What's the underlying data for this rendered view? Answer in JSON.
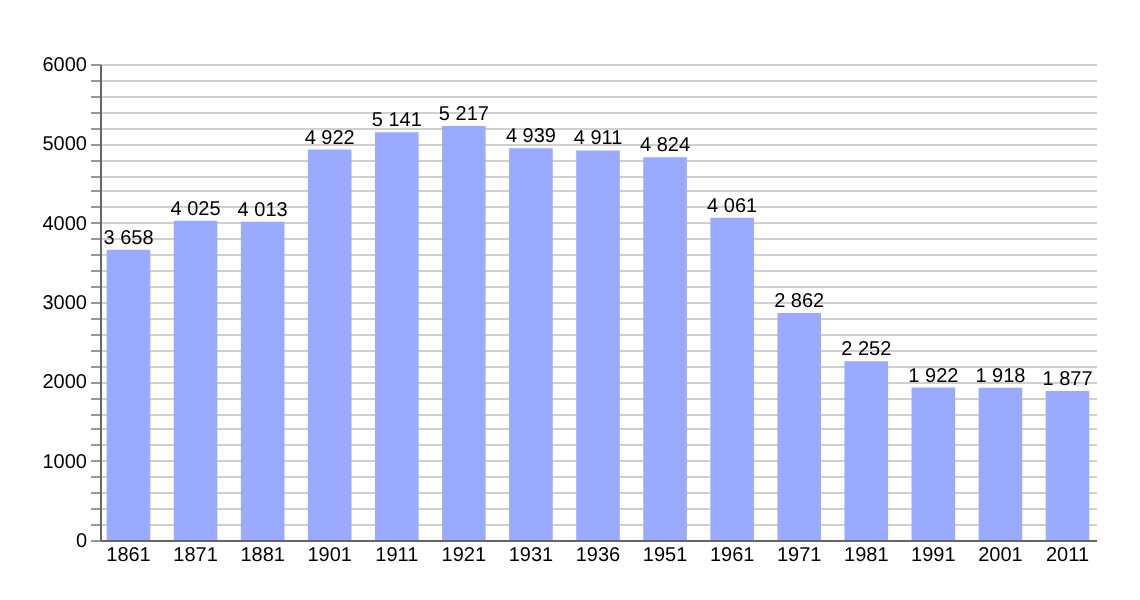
{
  "chart_data": {
    "type": "bar",
    "categories": [
      "1861",
      "1871",
      "1881",
      "1901",
      "1911",
      "1921",
      "1931",
      "1936",
      "1951",
      "1961",
      "1971",
      "1981",
      "1991",
      "2001",
      "2011"
    ],
    "values": [
      3658,
      4025,
      4013,
      4922,
      5141,
      5217,
      4939,
      4911,
      4824,
      4061,
      2862,
      2252,
      1922,
      1918,
      1877
    ],
    "value_labels": [
      "3 658",
      "4 025",
      "4 013",
      "4 922",
      "5 141",
      "5 217",
      "4 939",
      "4 911",
      "4 824",
      "4 061",
      "2 862",
      "2 252",
      "1 922",
      "1 918",
      "1 877"
    ],
    "color": "#99aaff",
    "ylim": [
      0,
      6000
    ],
    "yticks": [
      0,
      {
        "value": 200,
        "label": null
      },
      {
        "value": 400,
        "label": null
      },
      {
        "value": 600,
        "label": null
      },
      {
        "value": 800,
        "label": null
      },
      1000,
      {
        "value": 1200,
        "label": null
      },
      {
        "value": 1400,
        "label": null
      },
      {
        "value": 1600,
        "label": null
      },
      {
        "value": 1800,
        "label": null
      },
      2000,
      {
        "value": 2200,
        "label": null
      },
      {
        "value": 2400,
        "label": null
      },
      {
        "value": 2600,
        "label": null
      },
      {
        "value": 2800,
        "label": null
      },
      3000,
      {
        "value": 3200,
        "label": null
      },
      {
        "value": 3400,
        "label": null
      },
      {
        "value": 3600,
        "label": null
      },
      {
        "value": 3800,
        "label": null
      },
      4000,
      {
        "value": 4200,
        "label": null
      },
      {
        "value": 4400,
        "label": null
      },
      {
        "value": 4600,
        "label": null
      },
      {
        "value": 4800,
        "label": null
      },
      5000,
      {
        "value": 5200,
        "label": null
      },
      {
        "value": 5400,
        "label": null
      },
      {
        "value": 5600,
        "label": null
      },
      {
        "value": 5800,
        "label": null
      },
      6000
    ],
    "grid": "y"
  }
}
